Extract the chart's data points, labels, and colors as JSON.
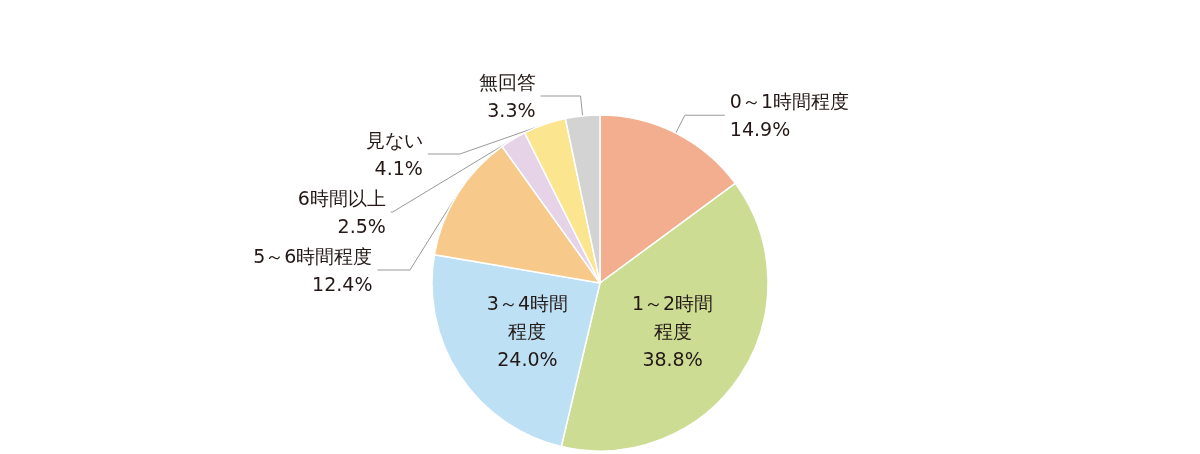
{
  "chart_data": {
    "type": "pie",
    "categories": [
      "0～1時間程度",
      "1～2時間程度",
      "3～4時間程度",
      "5～6時間程度",
      "6時間以上",
      "見ない",
      "無回答"
    ],
    "values": [
      14.9,
      38.8,
      24.0,
      12.4,
      2.5,
      4.1,
      3.3
    ],
    "value_labels": [
      "14.9%",
      "38.8%",
      "24.0%",
      "12.4%",
      "2.5%",
      "4.1%",
      "3.3%"
    ],
    "colors": [
      "#f2ae8e",
      "#cddc93",
      "#bde0f5",
      "#f7c98a",
      "#e6d3e8",
      "#fbe58e",
      "#d3d3d3"
    ],
    "legend": false
  }
}
